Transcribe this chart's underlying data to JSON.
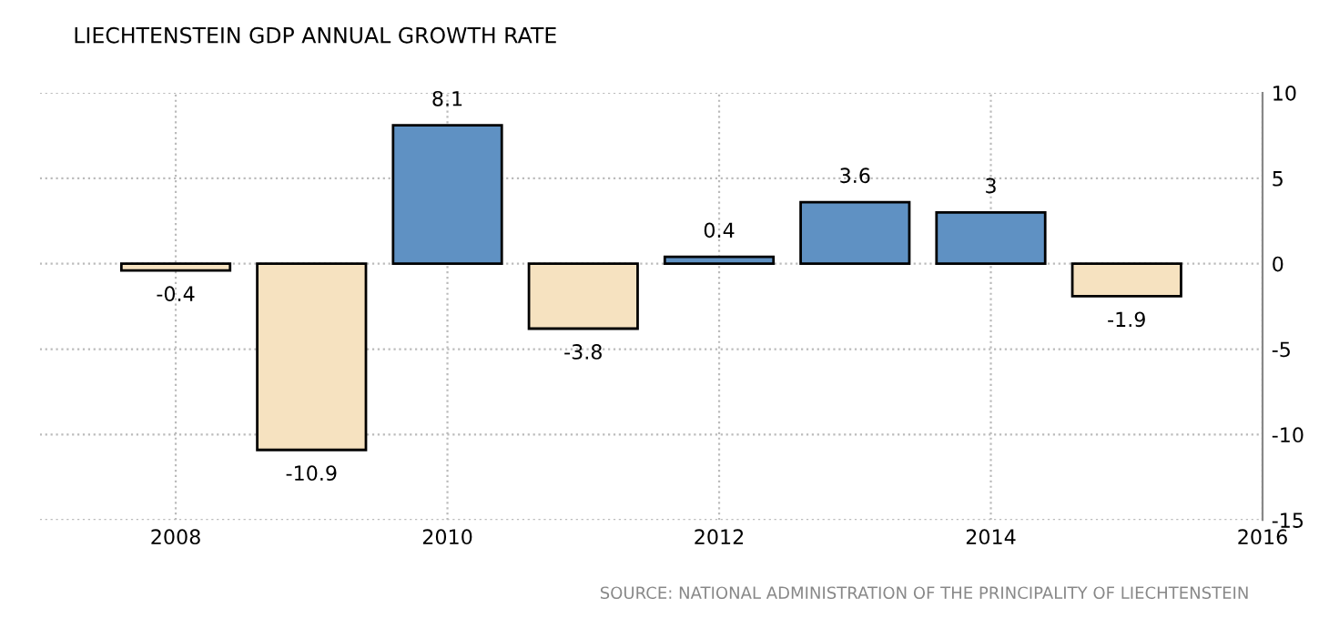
{
  "chart_data": {
    "type": "bar",
    "title": "LIECHTENSTEIN GDP ANNUAL GROWTH RATE",
    "x": [
      2008,
      2009,
      2010,
      2011,
      2012,
      2013,
      2014,
      2015
    ],
    "values": [
      -0.4,
      -10.9,
      8.1,
      -3.8,
      0.4,
      3.6,
      3,
      -1.9
    ],
    "colors": [
      "#f6e2c0",
      "#f6e2c0",
      "#5f91c3",
      "#f6e2c0",
      "#5f91c3",
      "#5f91c3",
      "#5f91c3",
      "#f6e2c0"
    ],
    "xlim": [
      2007,
      2016
    ],
    "xticks": [
      2008,
      2010,
      2012,
      2014,
      2016
    ],
    "ylim": [
      -15,
      10
    ],
    "yticks": [
      -15,
      -10,
      -5,
      0,
      5,
      10
    ],
    "grid": true,
    "data_labels": true,
    "annotations": [
      "SOURCE: NATIONAL ADMINISTRATION OF THE PRINCIPALITY OF LIECHTENSTEIN"
    ]
  }
}
